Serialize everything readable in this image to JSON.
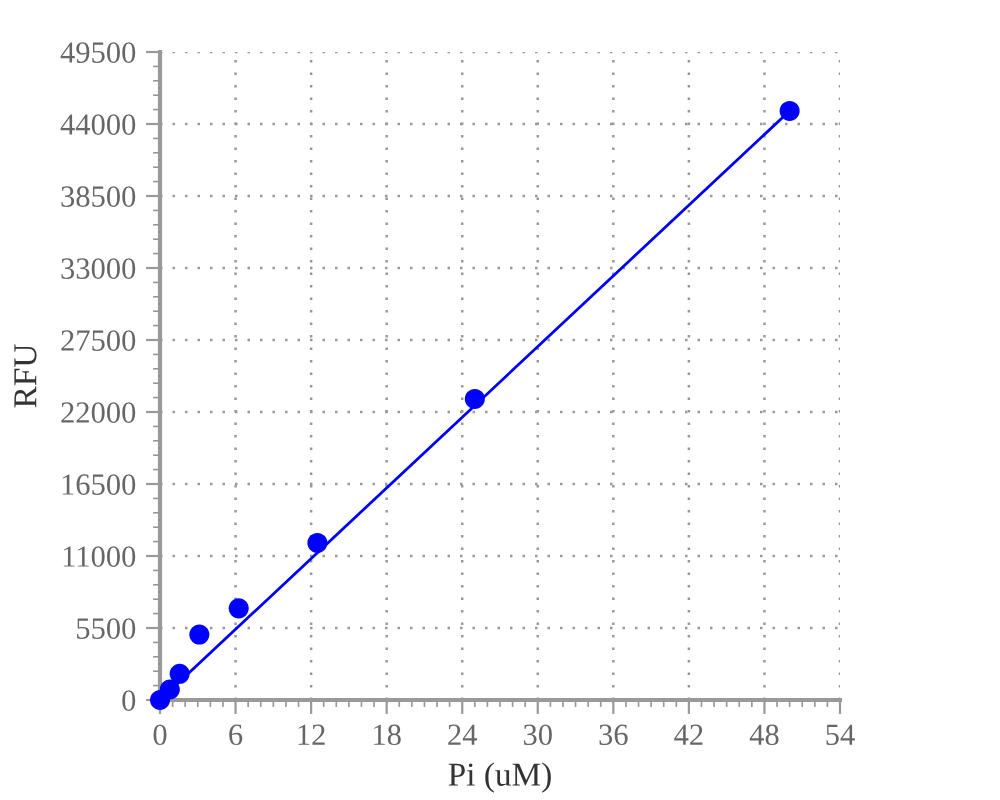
{
  "chart_data": {
    "type": "scatter",
    "xlabel": "Pi (uM)",
    "ylabel": "RFU",
    "xlim": [
      0,
      54
    ],
    "ylim": [
      0,
      49500
    ],
    "xticks": [
      0,
      6,
      12,
      18,
      24,
      30,
      36,
      42,
      48,
      54
    ],
    "yticks": [
      0,
      5500,
      11000,
      16500,
      22000,
      27500,
      33000,
      38500,
      44000,
      49500
    ],
    "grid": true,
    "marker": "circle",
    "series": [
      {
        "color": "#0000ff",
        "x": [
          0,
          0.78,
          1.56,
          3.125,
          6.25,
          12.5,
          25,
          50
        ],
        "values": [
          0,
          800,
          2000,
          5000,
          7000,
          12000,
          23000,
          45000
        ]
      },
      {
        "type": "line",
        "color": "#0000ff",
        "line_style": "solid",
        "marker": "none",
        "x": [
          0,
          50
        ],
        "values": [
          0,
          45000
        ]
      }
    ]
  }
}
